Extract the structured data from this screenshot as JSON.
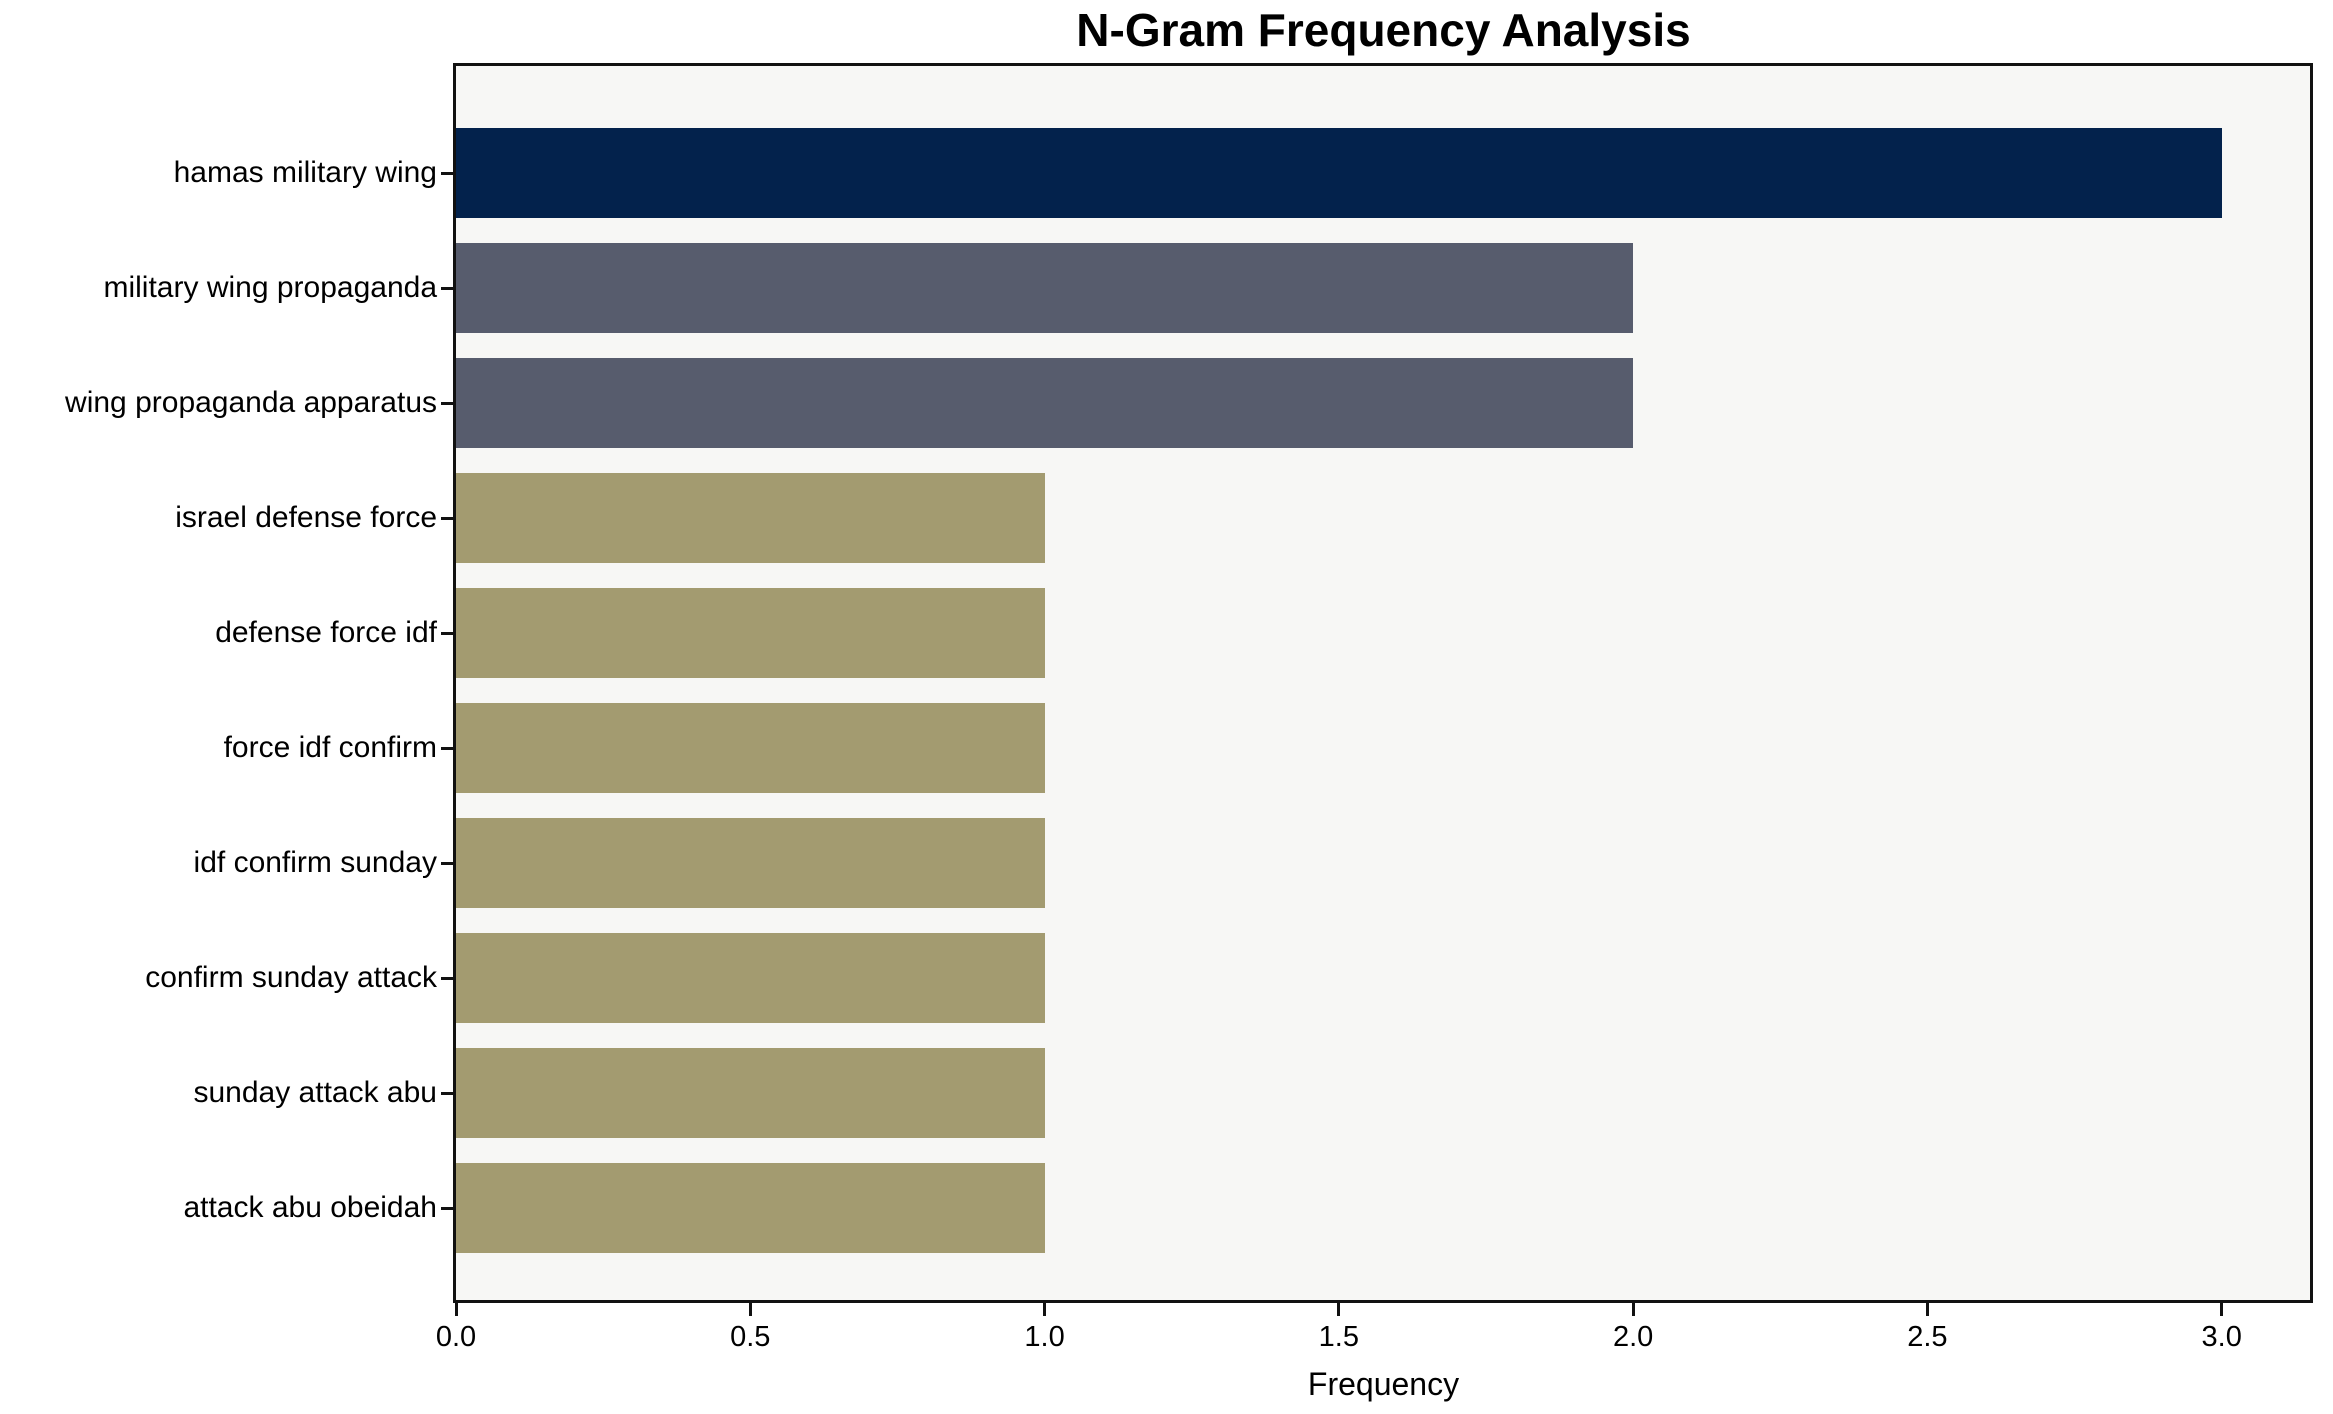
{
  "chart_data": {
    "type": "bar",
    "orientation": "horizontal",
    "title": "N-Gram Frequency Analysis",
    "xlabel": "Frequency",
    "ylabel": "",
    "categories": [
      "hamas military wing",
      "military wing propaganda",
      "wing propaganda apparatus",
      "israel defense force",
      "defense force idf",
      "force idf confirm",
      "idf confirm sunday",
      "confirm sunday attack",
      "sunday attack abu",
      "attack abu obeidah"
    ],
    "values": [
      3,
      2,
      2,
      1,
      1,
      1,
      1,
      1,
      1,
      1
    ],
    "bar_colors": [
      "#03224c",
      "#575c6d",
      "#575c6d",
      "#a39b70",
      "#a39b70",
      "#a39b70",
      "#a39b70",
      "#a39b70",
      "#a39b70",
      "#a39b70"
    ],
    "xlim": [
      0,
      3.15
    ],
    "x_ticks": [
      {
        "value": 0.0,
        "label": "0.0"
      },
      {
        "value": 0.5,
        "label": "0.5"
      },
      {
        "value": 1.0,
        "label": "1.0"
      },
      {
        "value": 1.5,
        "label": "1.5"
      },
      {
        "value": 2.0,
        "label": "2.0"
      },
      {
        "value": 2.5,
        "label": "2.5"
      },
      {
        "value": 3.0,
        "label": "3.0"
      }
    ],
    "grid": false,
    "legend": false,
    "plot_background": "#f7f7f5",
    "figure_background": "#ffffff",
    "frame_color": "#111111"
  }
}
